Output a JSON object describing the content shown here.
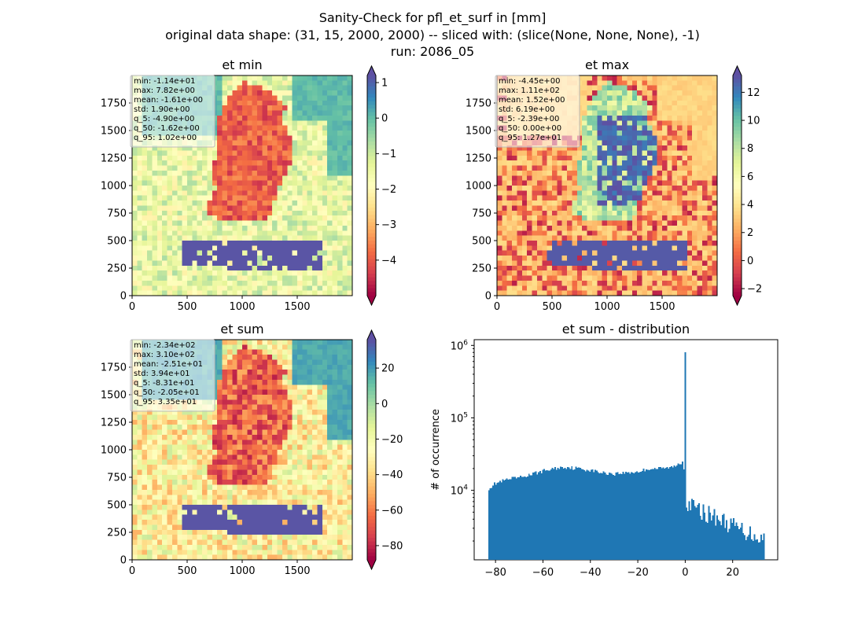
{
  "figure": {
    "suptitle_lines": [
      "Sanity-Check for pfl_et_surf in [mm]",
      "original data shape: (31, 15, 2000, 2000) -- sliced with: (slice(None, None, None), -1)",
      "run: 2086_05"
    ]
  },
  "chart_data": [
    {
      "type": "heatmap",
      "title": "et min",
      "xlim": [
        0,
        2000
      ],
      "ylim": [
        0,
        2000
      ],
      "xticks": [
        0,
        500,
        1000,
        1500
      ],
      "yticks": [
        0,
        250,
        500,
        750,
        1000,
        1250,
        1500,
        1750
      ],
      "colormap": "Spectral",
      "colorbar": {
        "range": [
          -5,
          1.2
        ],
        "ticks": [
          1,
          0,
          -1,
          -2,
          -3,
          -4
        ],
        "tick_labels": [
          "1",
          "0",
          "−1",
          "−2",
          "−3",
          "−4"
        ],
        "extend": "both"
      },
      "stats": [
        "min: -1.14e+01",
        "max: 7.82e+00",
        "mean: -1.61e+00",
        "std: 1.90e+00",
        "q_5: -4.90e+00",
        "q_50: -1.62e+00",
        "q_95: 1.02e+00"
      ]
    },
    {
      "type": "heatmap",
      "title": "et max",
      "xlim": [
        0,
        2000
      ],
      "ylim": [
        0,
        2000
      ],
      "xticks": [
        0,
        500,
        1000,
        1500
      ],
      "yticks": [
        0,
        250,
        500,
        750,
        1000,
        1250,
        1500,
        1750
      ],
      "colormap": "Spectral",
      "colorbar": {
        "range": [
          -2.5,
          13.2
        ],
        "ticks": [
          12,
          10,
          8,
          6,
          4,
          2,
          0,
          -2
        ],
        "tick_labels": [
          "12",
          "10",
          "8",
          "6",
          "4",
          "2",
          "0",
          "−2"
        ],
        "extend": "both"
      },
      "stats": [
        "min: -4.45e+00",
        "max: 1.11e+02",
        "mean: 1.52e+00",
        "std: 6.19e+00",
        "q_5: -2.39e+00",
        "q_50: 0.00e+00",
        "q_95: 1.27e+01"
      ]
    },
    {
      "type": "heatmap",
      "title": "et sum",
      "xlim": [
        0,
        2000
      ],
      "ylim": [
        0,
        2000
      ],
      "xticks": [
        0,
        500,
        1000,
        1500
      ],
      "yticks": [
        0,
        250,
        500,
        750,
        1000,
        1250,
        1500,
        1750
      ],
      "colormap": "Spectral",
      "colorbar": {
        "range": [
          -88,
          36
        ],
        "ticks": [
          20,
          0,
          -20,
          -40,
          -60,
          -80
        ],
        "tick_labels": [
          "20",
          "0",
          "−20",
          "−40",
          "−60",
          "−80"
        ],
        "extend": "both"
      },
      "stats": [
        "min: -2.34e+02",
        "max: 3.10e+02",
        "mean: -2.51e+01",
        "std: 3.94e+01",
        "q_5: -8.31e+01",
        "q_50: -2.05e+01",
        "q_95: 3.35e+01"
      ]
    },
    {
      "type": "bar",
      "title": "et sum - distribution",
      "xlabel": "",
      "ylabel": "# of occurrence",
      "yscale": "log",
      "xlim": [
        -89,
        39
      ],
      "ylim": [
        1100,
        1200000
      ],
      "xticks": [
        -80,
        -60,
        -40,
        -20,
        0,
        20
      ],
      "xtick_labels": [
        "−80",
        "−60",
        "−40",
        "−20",
        "0",
        "20"
      ],
      "yticks": [
        10000,
        100000,
        1000000
      ],
      "ytick_labels": [
        "10^4",
        "10^5",
        "10^6"
      ],
      "color": "#1f77b4",
      "bin_range": [
        -83.1,
        33.5
      ],
      "bin_count": 200,
      "peak": {
        "x": 0,
        "y": 800000
      },
      "profile": {
        "x": [
          -83,
          -80,
          -75,
          -70,
          -65,
          -60,
          -55,
          -50,
          -45,
          -40,
          -35,
          -30,
          -25,
          -20,
          -15,
          -10,
          -5,
          -1,
          0.3,
          2,
          5,
          10,
          15,
          20,
          25,
          30,
          33
        ],
        "y": [
          10500,
          12500,
          14000,
          15000,
          16500,
          18500,
          20000,
          21000,
          20000,
          19000,
          17500,
          17000,
          17500,
          18000,
          20000,
          20000,
          21000,
          25000,
          7500,
          6500,
          5500,
          4800,
          4000,
          3300,
          2800,
          2400,
          2200
        ]
      }
    }
  ]
}
